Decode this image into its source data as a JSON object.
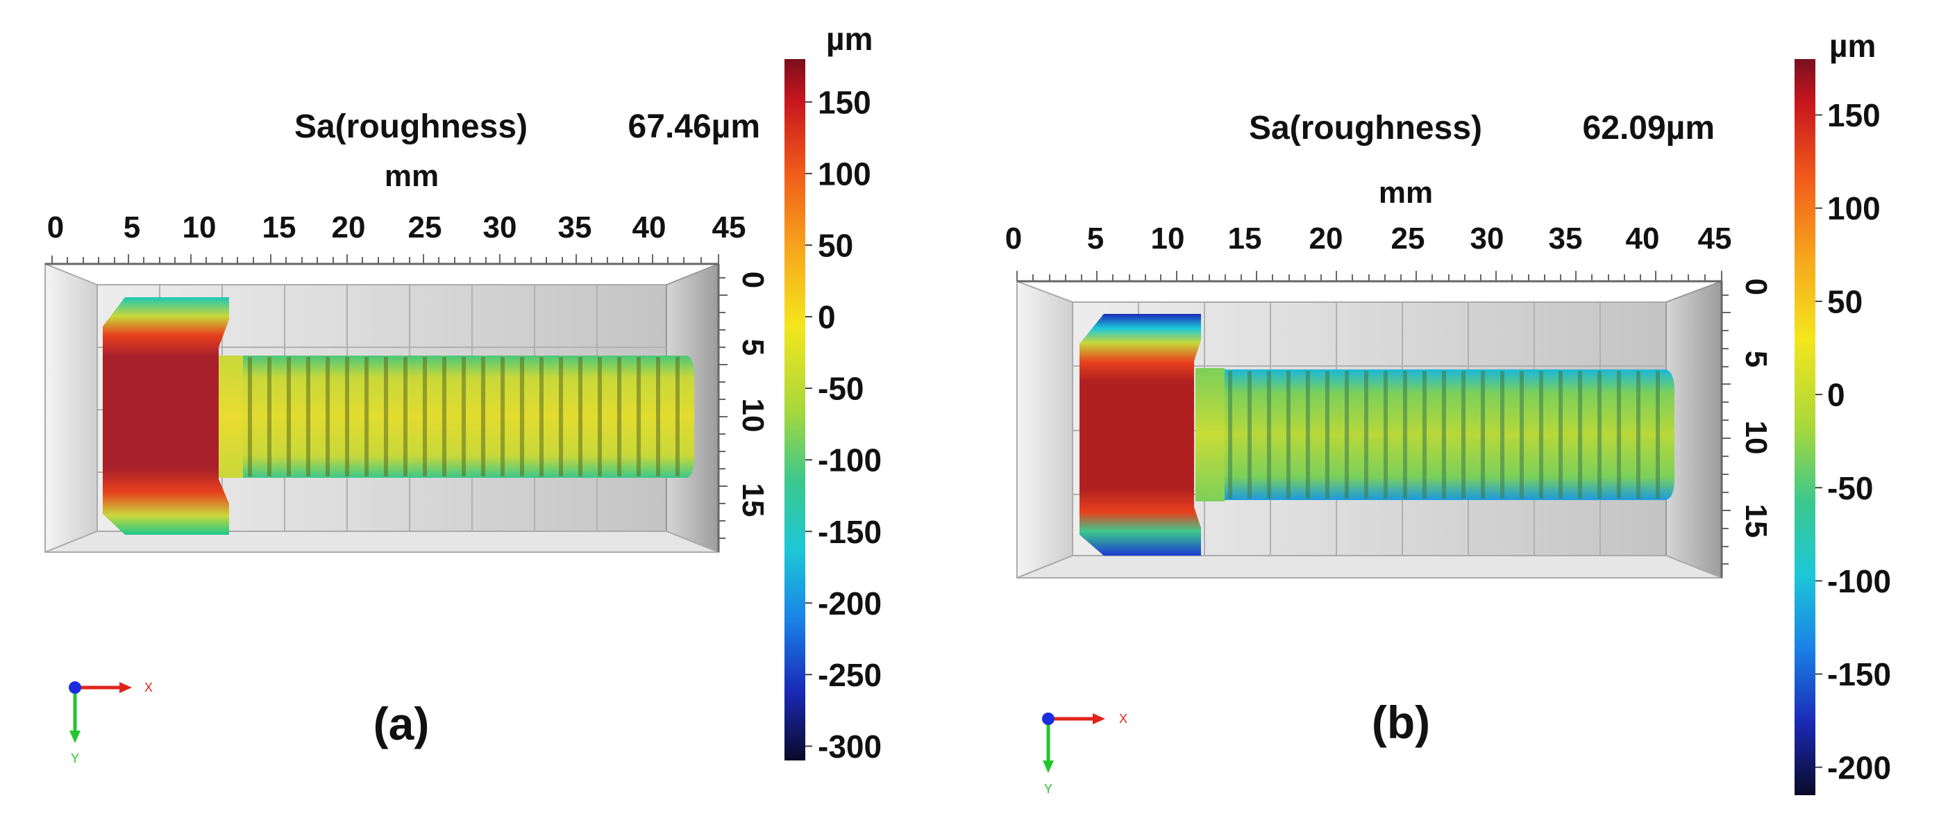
{
  "panels": [
    {
      "label": "(a)",
      "roughness_label": "Sa(roughness)",
      "roughness_value": "67.46µm",
      "x_axis_unit": "mm",
      "x_ticks": [
        "0",
        "5",
        "10",
        "15",
        "20",
        "25",
        "30",
        "35",
        "40",
        "45"
      ],
      "y_ticks": [
        "0",
        "5",
        "10",
        "15"
      ],
      "colorbar": {
        "unit": "µm",
        "min": -310,
        "max": 180,
        "ticks": [
          "150",
          "100",
          "50",
          "0",
          "-50",
          "-100",
          "-150",
          "-200",
          "-250",
          "-300"
        ]
      },
      "axis_labels": {
        "x": "X",
        "y": "Y"
      },
      "colors": {
        "head": "#a82828",
        "shank": "#c8d232",
        "x_arrow": "#e0241c",
        "y_arrow": "#21c72a",
        "origin": "#1a2ee0"
      }
    },
    {
      "label": "(b)",
      "roughness_label": "Sa(roughness)",
      "roughness_value": "62.09µm",
      "x_axis_unit": "mm",
      "x_ticks": [
        "0",
        "5",
        "10",
        "15",
        "20",
        "25",
        "30",
        "35",
        "40",
        "45"
      ],
      "y_ticks": [
        "0",
        "5",
        "10",
        "15"
      ],
      "colorbar": {
        "unit": "µm",
        "min": -215,
        "max": 180,
        "ticks": [
          "150",
          "100",
          "50",
          "0",
          "-50",
          "-100",
          "-150",
          "-200"
        ]
      },
      "axis_labels": {
        "x": "X",
        "y": "Y"
      },
      "colors": {
        "head": "#b02020",
        "shank": "#a8d240",
        "x_arrow": "#e0241c",
        "y_arrow": "#21c72a",
        "origin": "#1a2ee0"
      }
    }
  ]
}
